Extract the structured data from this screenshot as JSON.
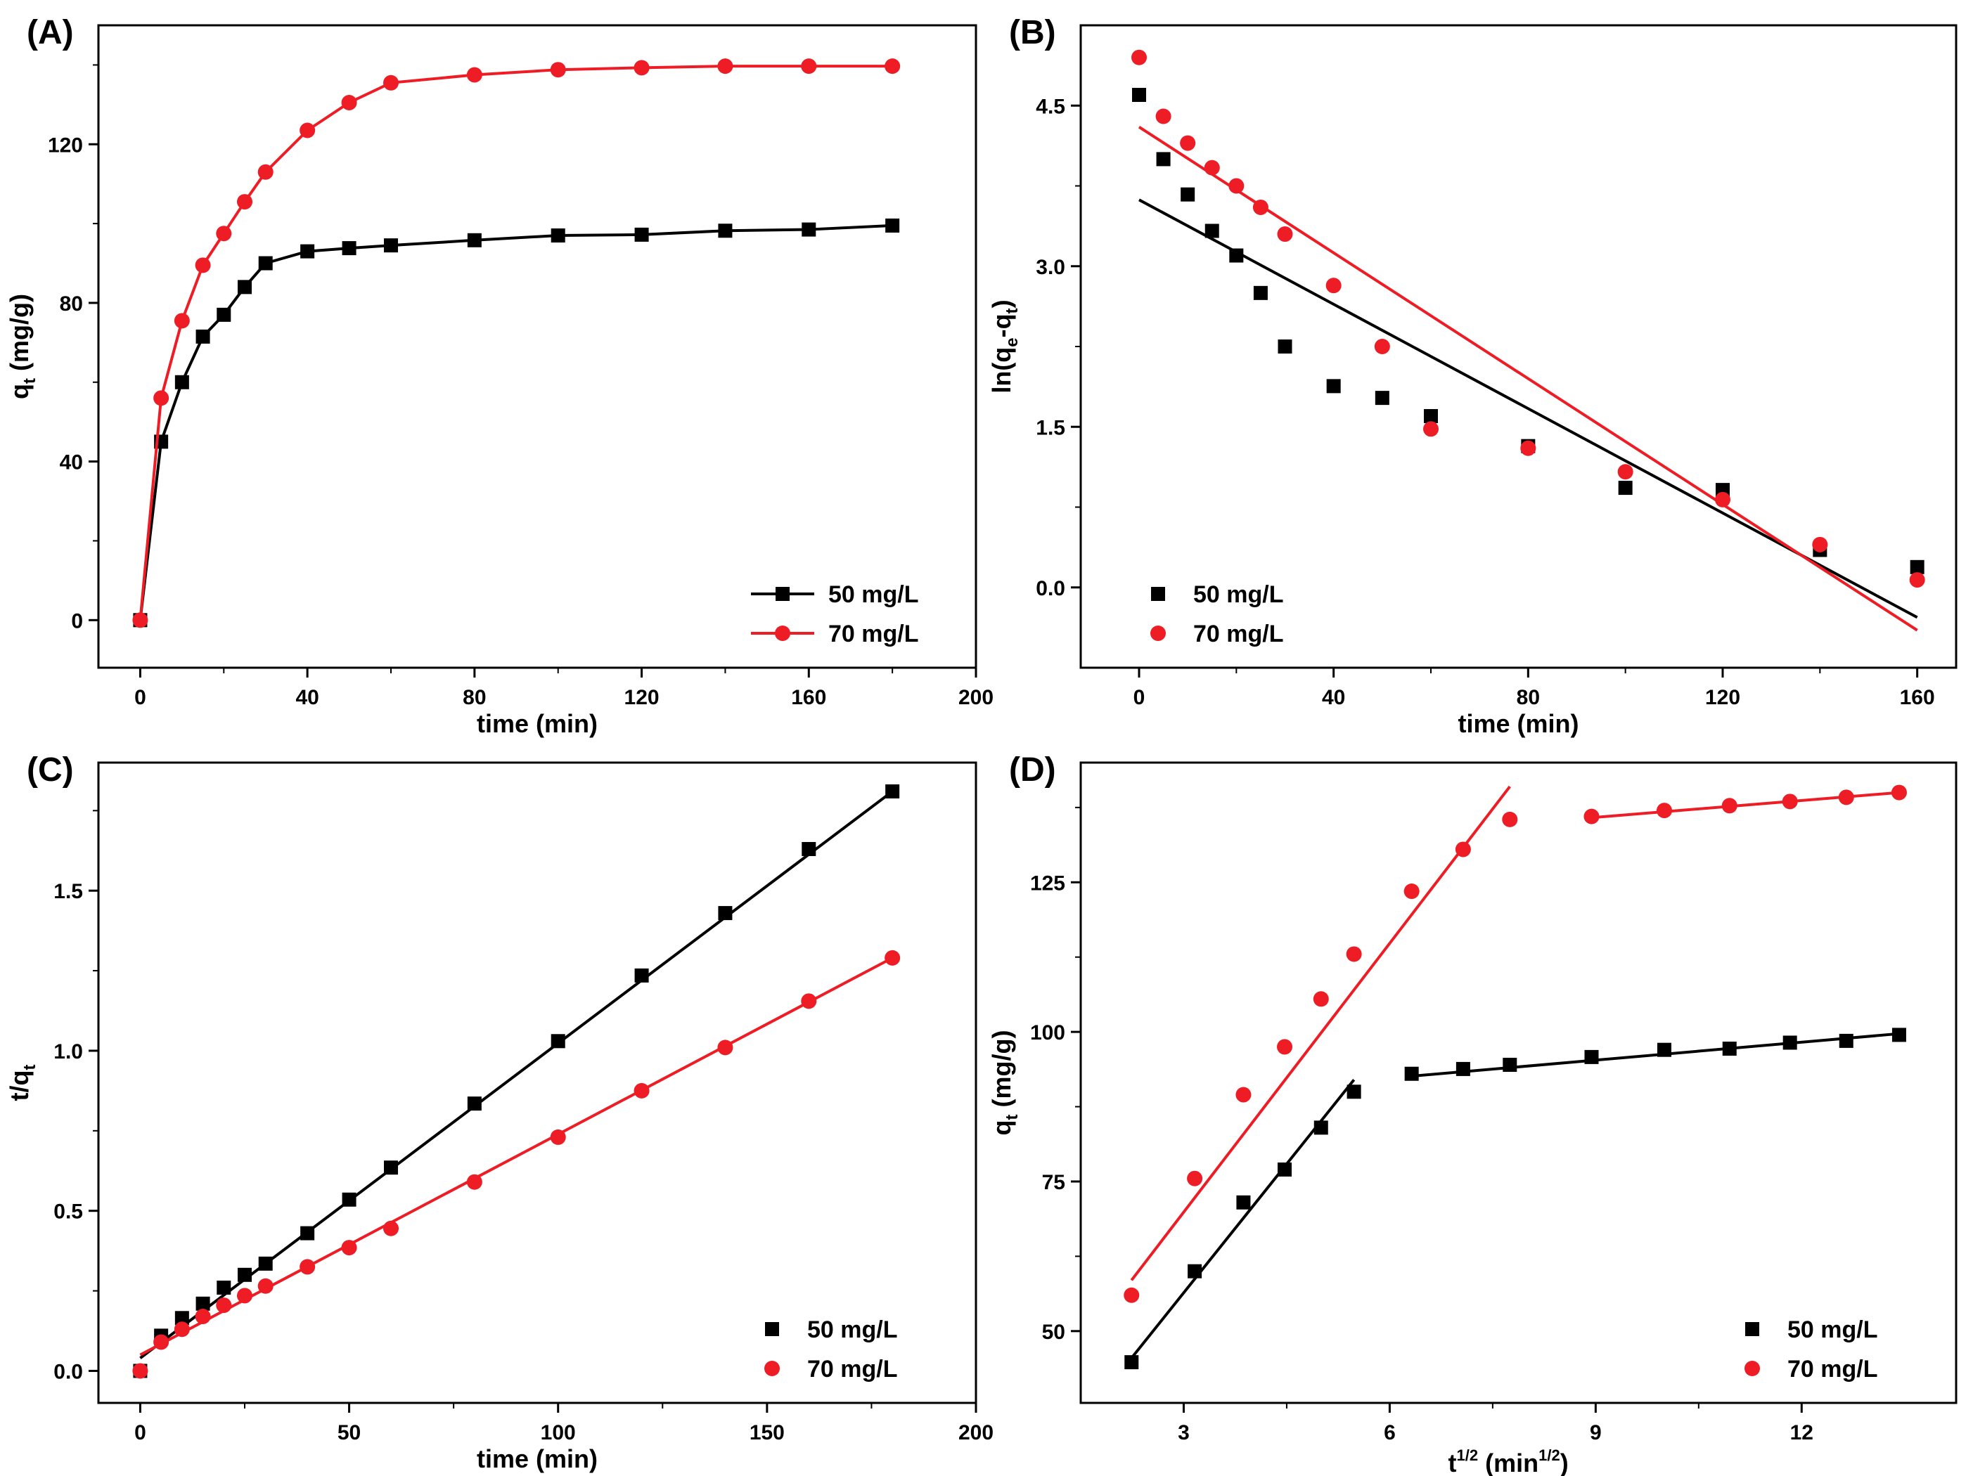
{
  "figure": {
    "panels": [
      "A",
      "B",
      "C",
      "D"
    ]
  },
  "chart_data": [
    {
      "id": "A",
      "panel_label": "(A)",
      "type": "line",
      "xlabel": "time (min)",
      "ylabel_main": "q",
      "ylabel_sub": "t",
      "ylabel_rest": " (mg/g)",
      "xlim": [
        -10,
        200
      ],
      "ylim": [
        -12,
        150
      ],
      "xticks": [
        0,
        40,
        80,
        120,
        160,
        200
      ],
      "yticks": [
        0,
        40,
        80,
        120
      ],
      "legend_position": "bottom-right",
      "series": [
        {
          "name": "50 mg/L",
          "color": "#000000",
          "marker": "square",
          "show_line": true,
          "x": [
            0,
            5,
            10,
            15,
            20,
            25,
            30,
            40,
            50,
            60,
            80,
            100,
            120,
            140,
            160,
            180
          ],
          "y": [
            0,
            45,
            60,
            71.5,
            77,
            84,
            90,
            93,
            93.8,
            94.5,
            95.8,
            97,
            97.2,
            98.2,
            98.5,
            99.5
          ]
        },
        {
          "name": "70 mg/L",
          "color": "#ee1c24",
          "marker": "circle",
          "show_line": true,
          "x": [
            0,
            5,
            10,
            15,
            20,
            25,
            30,
            40,
            50,
            60,
            80,
            100,
            120,
            140,
            160,
            180
          ],
          "y": [
            0,
            56,
            75.5,
            89.5,
            97.5,
            105.5,
            113,
            123.5,
            130.5,
            135.5,
            137.5,
            138.8,
            139.3,
            139.7,
            139.7,
            139.7
          ]
        }
      ]
    },
    {
      "id": "B",
      "panel_label": "(B)",
      "type": "scatter",
      "xlabel": "time (min)",
      "ylabel_text": "ln(q",
      "ylabel_sub1": "e",
      "ylabel_mid": "-q",
      "ylabel_sub2": "t",
      "ylabel_end": ")",
      "xlim": [
        -12,
        168
      ],
      "ylim": [
        -0.75,
        5.25
      ],
      "xticks": [
        0,
        40,
        80,
        120,
        160
      ],
      "yticks": [
        0.0,
        1.5,
        3.0,
        4.5
      ],
      "ytick_labels": [
        "0.0",
        "1.5",
        "3.0",
        "4.5"
      ],
      "legend_position": "bottom-left",
      "series": [
        {
          "name": "50 mg/L",
          "color": "#000000",
          "marker": "square",
          "x": [
            0,
            5,
            10,
            15,
            20,
            25,
            30,
            40,
            50,
            60,
            80,
            100,
            120,
            140,
            160
          ],
          "y": [
            4.6,
            4.0,
            3.67,
            3.33,
            3.1,
            2.75,
            2.25,
            1.88,
            1.77,
            1.6,
            1.32,
            0.93,
            0.91,
            0.35,
            0.19
          ],
          "fit": [
            [
              0,
              3.62
            ],
            [
              160,
              -0.28
            ]
          ]
        },
        {
          "name": "70 mg/L",
          "color": "#ee1c24",
          "marker": "circle",
          "x": [
            0,
            5,
            10,
            15,
            20,
            25,
            30,
            40,
            50,
            60,
            80,
            100,
            120,
            140,
            160
          ],
          "y": [
            4.95,
            4.4,
            4.15,
            3.92,
            3.75,
            3.55,
            3.3,
            2.82,
            2.25,
            1.48,
            1.3,
            1.08,
            0.82,
            0.4,
            0.07
          ],
          "fit": [
            [
              0,
              4.3
            ],
            [
              160,
              -0.4
            ]
          ]
        }
      ]
    },
    {
      "id": "C",
      "panel_label": "(C)",
      "type": "scatter",
      "xlabel": "time (min)",
      "ylabel_text": "t/q",
      "ylabel_sub": "t",
      "xlim": [
        -10,
        200
      ],
      "ylim": [
        -0.1,
        1.9
      ],
      "xticks": [
        0,
        50,
        100,
        150,
        200
      ],
      "yticks": [
        0.0,
        0.5,
        1.0,
        1.5
      ],
      "ytick_labels": [
        "0.0",
        "0.5",
        "1.0",
        "1.5"
      ],
      "legend_position": "bottom-right",
      "series": [
        {
          "name": "50 mg/L",
          "color": "#000000",
          "marker": "square",
          "x": [
            0,
            5,
            10,
            15,
            20,
            25,
            30,
            40,
            50,
            60,
            80,
            100,
            120,
            140,
            160,
            180
          ],
          "y": [
            0,
            0.11,
            0.165,
            0.21,
            0.26,
            0.3,
            0.335,
            0.43,
            0.535,
            0.635,
            0.835,
            1.03,
            1.235,
            1.43,
            1.63,
            1.81
          ],
          "fit": [
            [
              0,
              0.04
            ],
            [
              180,
              1.81
            ]
          ]
        },
        {
          "name": "70 mg/L",
          "color": "#ee1c24",
          "marker": "circle",
          "x": [
            0,
            5,
            10,
            15,
            20,
            25,
            30,
            40,
            50,
            60,
            80,
            100,
            120,
            140,
            160,
            180
          ],
          "y": [
            0,
            0.09,
            0.13,
            0.17,
            0.205,
            0.235,
            0.265,
            0.325,
            0.385,
            0.445,
            0.59,
            0.73,
            0.875,
            1.01,
            1.155,
            1.29
          ],
          "fit": [
            [
              0,
              0.05
            ],
            [
              180,
              1.29
            ]
          ]
        }
      ]
    },
    {
      "id": "D",
      "panel_label": "(D)",
      "type": "scatter",
      "xlabel_main": "t",
      "xlabel_sup": "1/2",
      "xlabel_mid": " (min",
      "xlabel_sup2": "1/2",
      "xlabel_end": ")",
      "ylabel_main": "q",
      "ylabel_sub": "t",
      "ylabel_rest": " (mg/g)",
      "xlim": [
        1.5,
        14.25
      ],
      "ylim": [
        38,
        145
      ],
      "xticks": [
        3,
        6,
        9,
        12
      ],
      "yticks": [
        50,
        75,
        100,
        125
      ],
      "legend_position": "bottom-right",
      "series": [
        {
          "name": "50 mg/L",
          "color": "#000000",
          "marker": "square",
          "x": [
            2.24,
            3.16,
            3.87,
            4.47,
            5.0,
            5.48,
            6.32,
            7.07,
            7.75,
            8.94,
            10.0,
            10.95,
            11.83,
            12.65,
            13.42
          ],
          "y": [
            44.8,
            60,
            71.5,
            77,
            84,
            90,
            93,
            93.8,
            94.5,
            95.8,
            97,
            97.2,
            98.2,
            98.5,
            99.5
          ],
          "fits": [
            [
              [
                2.24,
                45.5
              ],
              [
                5.48,
                92
              ]
            ],
            [
              [
                6.32,
                92.6
              ],
              [
                13.42,
                99.7
              ]
            ]
          ]
        },
        {
          "name": "70 mg/L",
          "color": "#ee1c24",
          "marker": "circle",
          "x": [
            2.24,
            3.16,
            3.87,
            4.47,
            5.0,
            5.48,
            6.32,
            7.07,
            7.75,
            8.94,
            10.0,
            10.95,
            11.83,
            12.65,
            13.42
          ],
          "y": [
            56,
            75.5,
            89.5,
            97.5,
            105.5,
            113,
            123.5,
            130.5,
            135.5,
            136,
            137,
            137.8,
            138.5,
            139.2,
            140
          ],
          "fits": [
            [
              [
                2.24,
                58.5
              ],
              [
                7.75,
                141
              ]
            ],
            [
              [
                8.94,
                135.8
              ],
              [
                13.42,
                140
              ]
            ]
          ]
        }
      ]
    }
  ]
}
